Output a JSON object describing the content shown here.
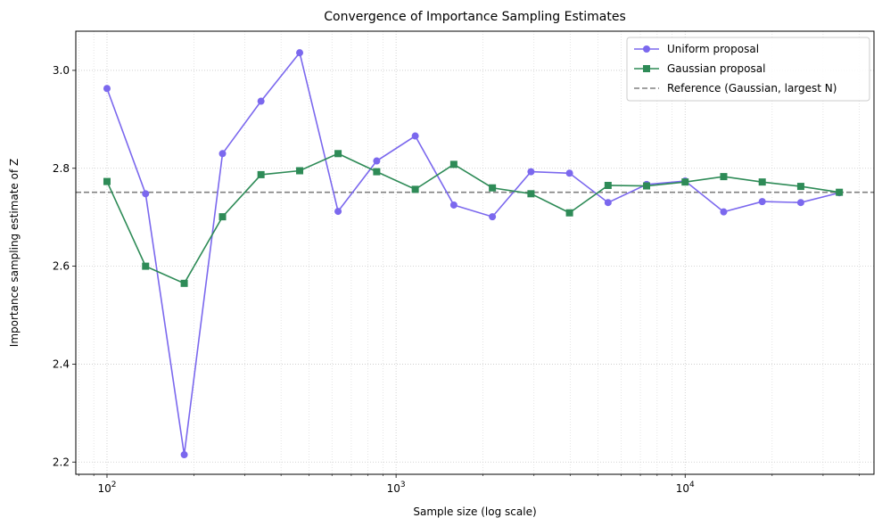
{
  "chart_data": {
    "type": "line",
    "title": "Convergence of Importance Sampling Estimates",
    "xlabel": "Sample size (log scale)",
    "ylabel": "Importance sampling estimate of Z",
    "x_scale": "log",
    "xlim": [
      78,
      45000
    ],
    "ylim": [
      2.175,
      3.08
    ],
    "x_ticks": [
      {
        "value": 100,
        "base": "10",
        "exp": "2"
      },
      {
        "value": 1000,
        "base": "10",
        "exp": "3"
      },
      {
        "value": 10000,
        "base": "10",
        "exp": "4"
      }
    ],
    "y_ticks": [
      2.2,
      2.4,
      2.6,
      2.8,
      3.0
    ],
    "y_tick_labels": [
      "2.2",
      "2.4",
      "2.6",
      "2.8",
      "3.0"
    ],
    "grid": true,
    "legend_position": "top-right",
    "x": [
      100,
      136,
      185,
      251,
      341,
      464,
      630,
      857,
      1165,
      1584,
      2154,
      2929,
      3981,
      5412,
      7356,
      10000,
      13593,
      18478,
      25118,
      34145
    ],
    "series": [
      {
        "name": "Uniform proposal",
        "color": "#7b68ee",
        "marker": "circle",
        "values": [
          2.963,
          2.748,
          2.215,
          2.83,
          2.937,
          3.036,
          2.712,
          2.815,
          2.866,
          2.725,
          2.701,
          2.793,
          2.79,
          2.73,
          2.767,
          2.774,
          2.711,
          2.732,
          2.73,
          2.75
        ]
      },
      {
        "name": "Gaussian proposal",
        "color": "#2e8b57",
        "marker": "square",
        "values": [
          2.773,
          2.6,
          2.565,
          2.701,
          2.787,
          2.795,
          2.83,
          2.793,
          2.757,
          2.808,
          2.76,
          2.748,
          2.709,
          2.765,
          2.764,
          2.772,
          2.783,
          2.772,
          2.763,
          2.751
        ]
      }
    ],
    "reference_line": {
      "name": "Reference (Gaussian, largest N)",
      "value": 2.751,
      "color": "#808080"
    }
  }
}
